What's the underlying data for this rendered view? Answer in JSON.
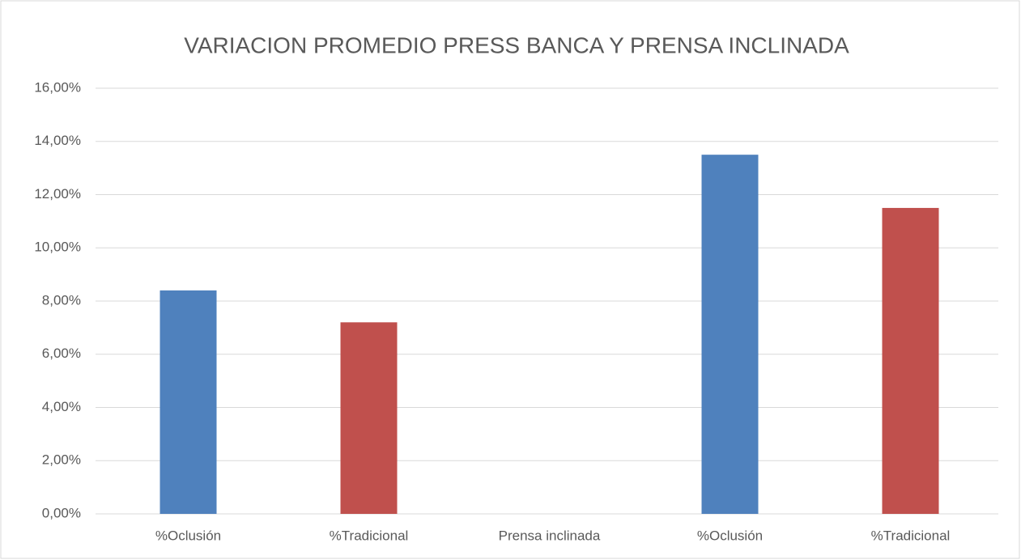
{
  "chart_data": {
    "type": "bar",
    "title": "VARIACION PROMEDIO PRESS BANCA Y PRENSA INCLINADA",
    "categories": [
      "%Oclusión",
      "%Tradicional",
      "Prensa inclinada",
      "%Oclusión",
      "%Tradicional"
    ],
    "values": [
      8.4,
      7.2,
      null,
      13.5,
      11.5
    ],
    "colors": [
      "#4f81bd",
      "#c0504d",
      null,
      "#4f81bd",
      "#c0504d"
    ],
    "ylim": [
      0,
      16
    ],
    "yticks": [
      {
        "value": 0,
        "label": "0,00%"
      },
      {
        "value": 2,
        "label": "2,00%"
      },
      {
        "value": 4,
        "label": "4,00%"
      },
      {
        "value": 6,
        "label": "6,00%"
      },
      {
        "value": 8,
        "label": "8,00%"
      },
      {
        "value": 10,
        "label": "10,00%"
      },
      {
        "value": 12,
        "label": "12,00%"
      },
      {
        "value": 14,
        "label": "14,00%"
      },
      {
        "value": 16,
        "label": "16,00%"
      }
    ],
    "grid": true
  }
}
